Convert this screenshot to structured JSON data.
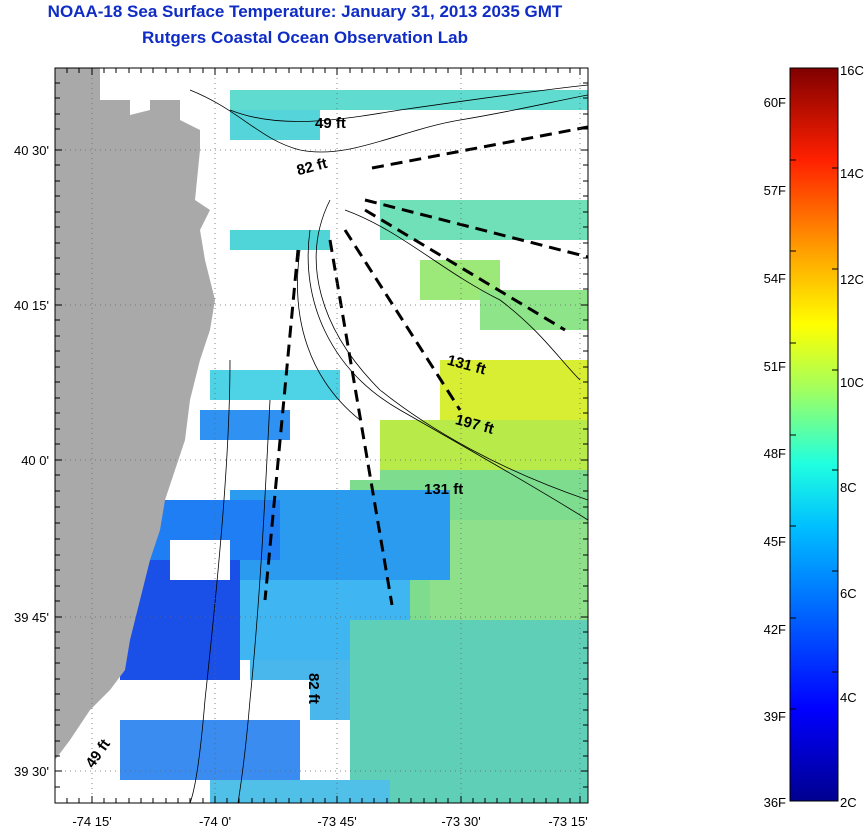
{
  "header": {
    "title": "NOAA-18 Sea Surface Temperature:  January 31, 2013 2035 GMT",
    "subtitle": "Rutgers Coastal Ocean Observation Lab"
  },
  "map": {
    "x_ticks": [
      "-74 15'",
      "-74 0'",
      "-73 45'",
      "-73 30'",
      "-73 15'"
    ],
    "y_ticks": [
      "40 30'",
      "40 15'",
      "40 0'",
      "39 45'",
      "39 30'"
    ],
    "depth_labels": [
      "49 ft",
      "82 ft",
      "131 ft",
      "197 ft",
      "131 ft",
      "82 ft",
      "49 ft"
    ],
    "colors": {
      "land": "#a9a9a9",
      "no_data": "#ffffff"
    }
  },
  "colorbar": {
    "celsius_labels": [
      "16C",
      "14C",
      "12C",
      "10C",
      "8C",
      "6C",
      "4C",
      "2C"
    ],
    "fahrenheit_labels": [
      "60F",
      "57F",
      "54F",
      "51F",
      "48F",
      "45F",
      "42F",
      "39F",
      "36F"
    ],
    "colors": [
      "#00008f",
      "#0000ff",
      "#0080ff",
      "#00ffff",
      "#80ff80",
      "#ffff00",
      "#ff8000",
      "#ff0000",
      "#800000"
    ]
  }
}
